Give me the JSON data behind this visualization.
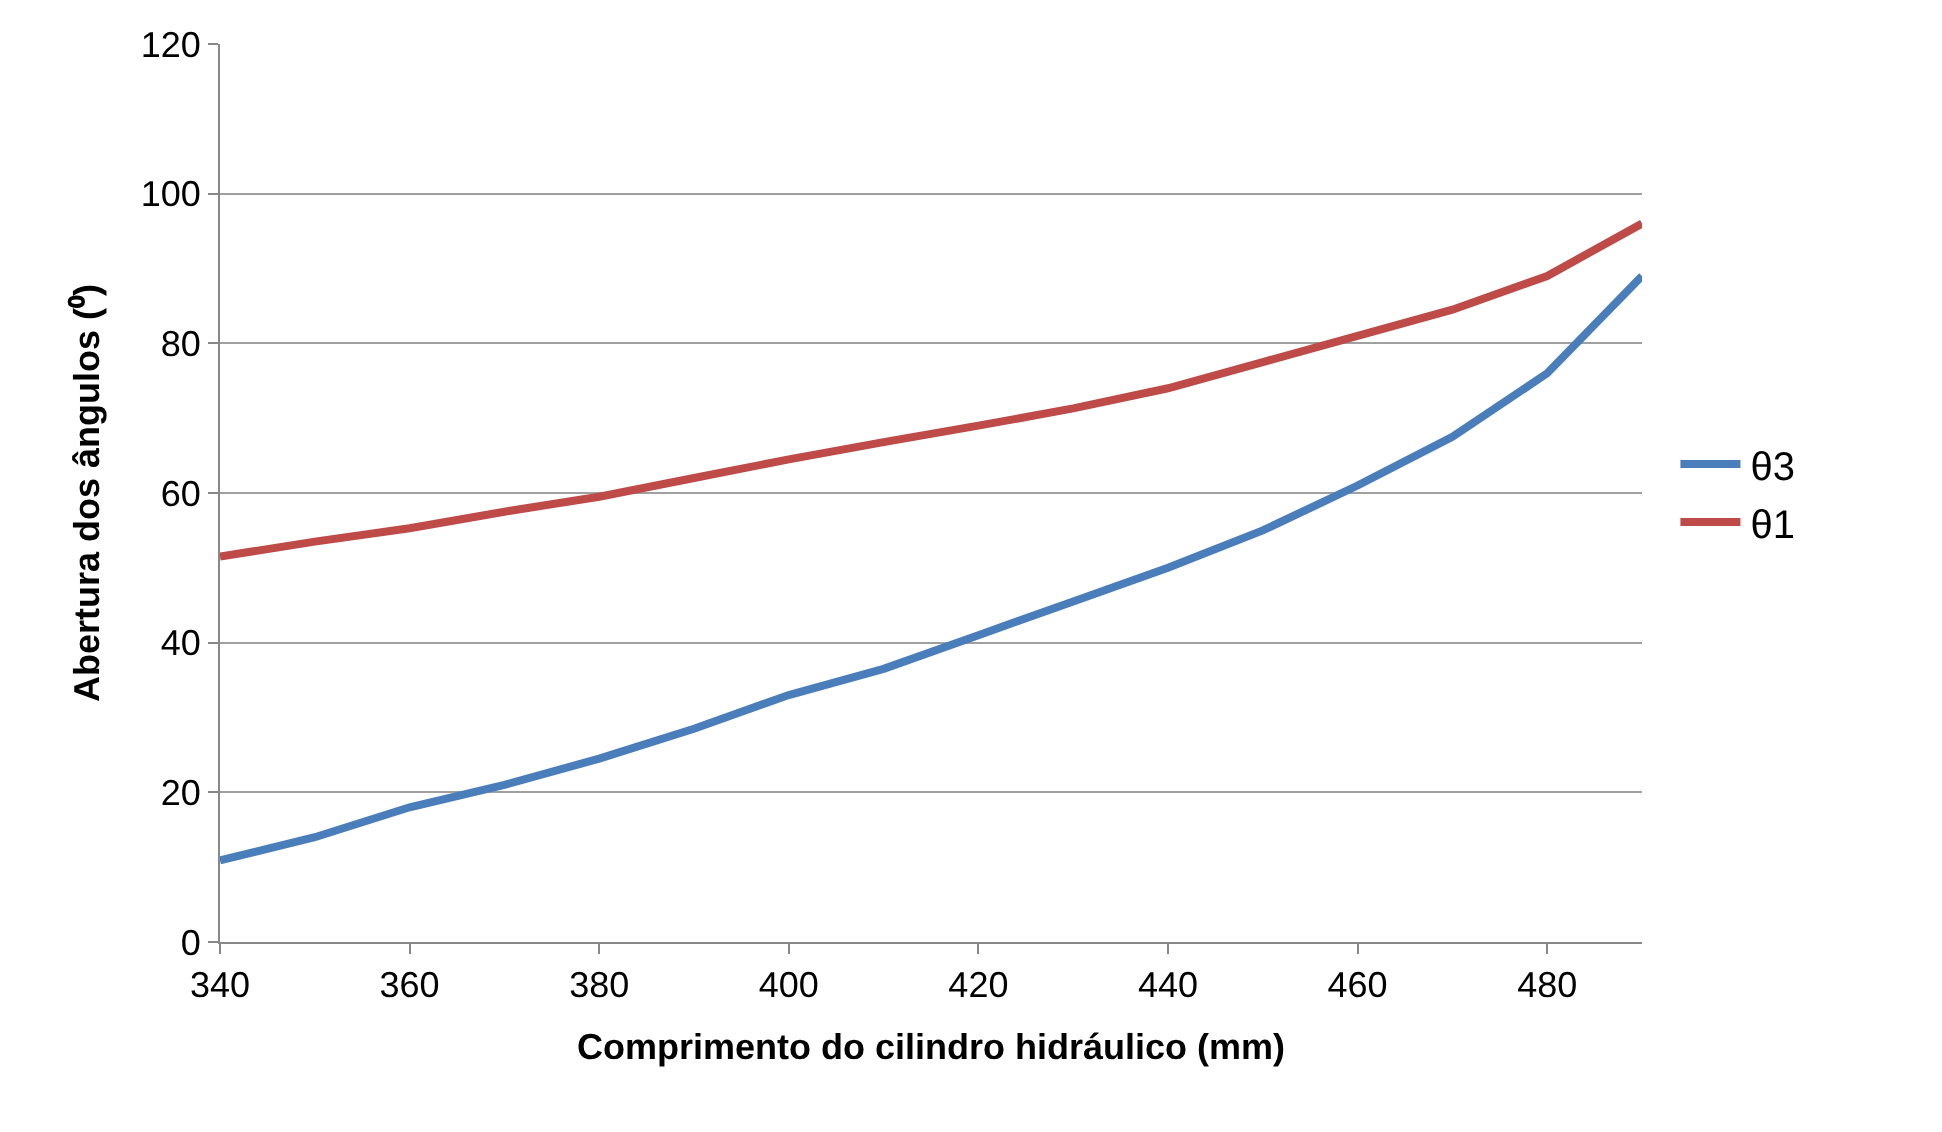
{
  "chart_data": {
    "type": "line",
    "xlabel": "Comprimento do cilindro hidráulico (mm)",
    "ylabel": "Abertura dos ângulos (⁰)",
    "x": [
      340,
      350,
      360,
      370,
      380,
      390,
      400,
      410,
      420,
      430,
      440,
      450,
      460,
      470,
      480,
      490
    ],
    "series": [
      {
        "name": "θ3",
        "color": "#4a7ebb",
        "values": [
          10.9,
          14,
          18,
          21,
          24.5,
          28.5,
          33,
          36.5,
          41,
          45.5,
          50,
          55,
          61,
          67.5,
          76,
          89
        ]
      },
      {
        "name": "θ1",
        "color": "#be4b48",
        "values": [
          51.5,
          53.5,
          55.3,
          57.5,
          59.5,
          62,
          64.5,
          66.8,
          69,
          71.3,
          74,
          77.5,
          81,
          84.5,
          89,
          96
        ]
      }
    ],
    "xlim": [
      340,
      490
    ],
    "xticks": [
      340,
      360,
      380,
      400,
      420,
      440,
      460,
      480
    ],
    "ylim": [
      0,
      120
    ],
    "yticks": [
      0,
      20,
      40,
      60,
      80,
      100,
      120
    ],
    "grid": "y",
    "legend": "right",
    "marker": "none",
    "line_style": "solid"
  }
}
